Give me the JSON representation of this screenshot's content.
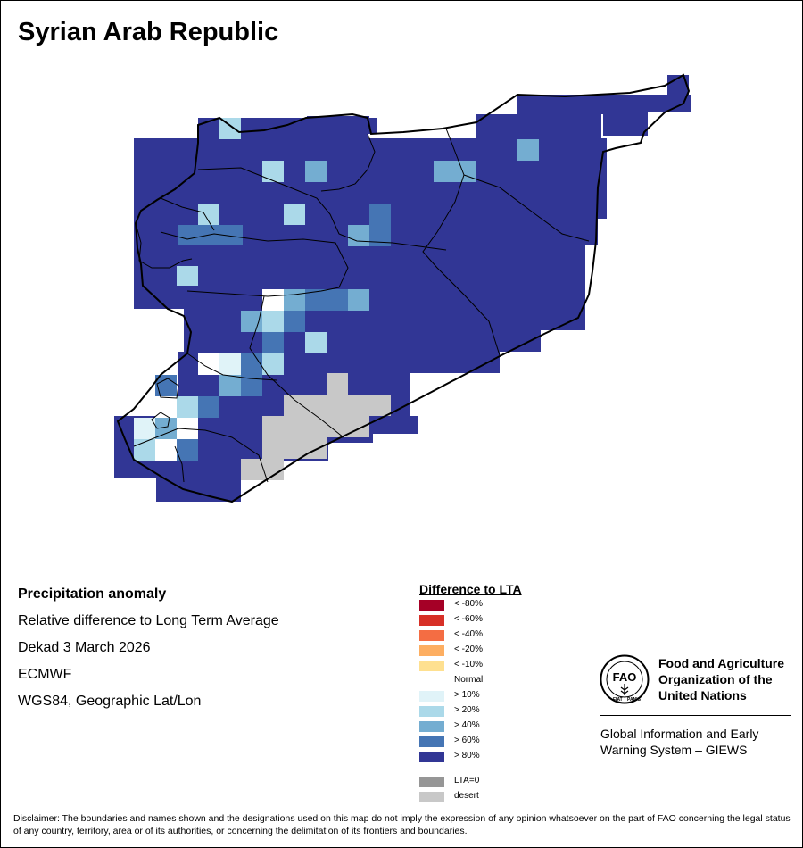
{
  "map": {
    "title": "Syrian Arab Republic"
  },
  "info": {
    "heading": "Precipitation anomaly",
    "subtitle": "Relative difference to Long Term Average",
    "period": "Dekad 3 March 2026",
    "source": "ECMWF",
    "projection": "WGS84, Geographic Lat/Lon"
  },
  "legend": {
    "title": "Difference to LTA",
    "items": [
      {
        "label": "< -80%",
        "color": "#a50026"
      },
      {
        "label": "< -60%",
        "color": "#d73027"
      },
      {
        "label": "< -40%",
        "color": "#f46d43"
      },
      {
        "label": "< -20%",
        "color": "#fdae61"
      },
      {
        "label": "< -10%",
        "color": "#fee090"
      },
      {
        "label": "Normal",
        "color": "#ffffff"
      },
      {
        "label": "> 10%",
        "color": "#e0f3f8"
      },
      {
        "label": "> 20%",
        "color": "#abd9e9"
      },
      {
        "label": "> 40%",
        "color": "#74add1"
      },
      {
        "label": "> 60%",
        "color": "#4575b4"
      },
      {
        "label": "> 80%",
        "color": "#313695"
      }
    ],
    "extra": [
      {
        "label": "LTA=0",
        "color": "#969696"
      },
      {
        "label": "desert",
        "color": "#c8c8c8"
      }
    ]
  },
  "org": {
    "logo_letters": "FAO",
    "logo_motto": "FIAT PANIS",
    "name_line1": "Food and Agriculture",
    "name_line2": "Organization of the",
    "name_line3": "United Nations",
    "giews_line1": "Global Information and Early",
    "giews_line2": "Warning System – GIEWS"
  },
  "disclaimer": "Disclaimer: The boundaries and names shown and the designations used on this map do not imply the expression of any opinion whatsoever on the part of FAO concerning the legal status of any country, territory, area or of its authorities, or concerning the delimitation of its frontiers and boundaries."
}
